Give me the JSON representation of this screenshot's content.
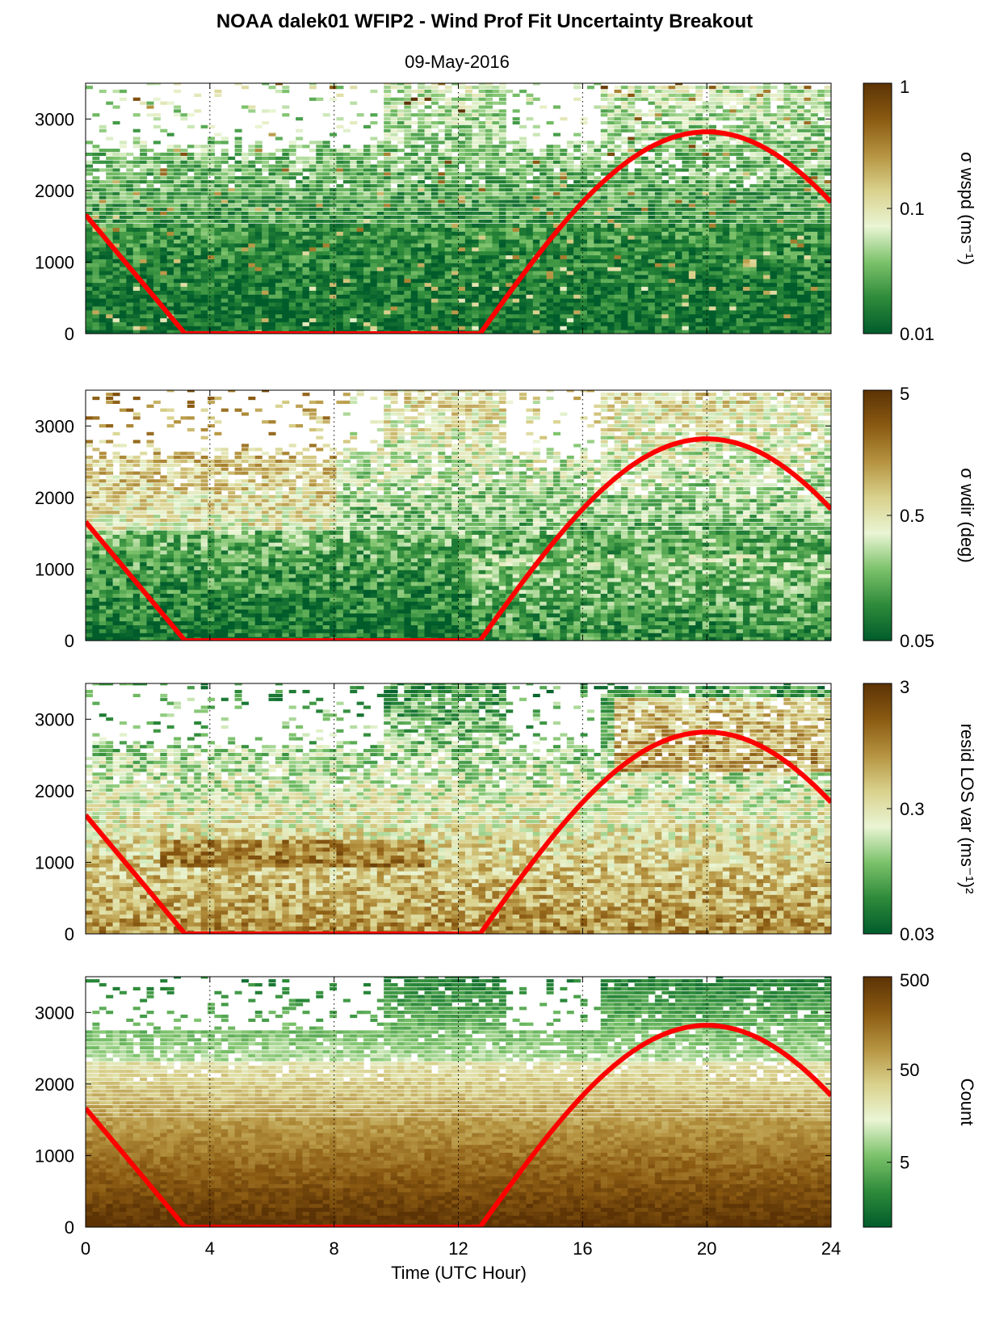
{
  "figure": {
    "title": "NOAA dalek01 WFIP2 - Wind Prof Fit Uncertainty Breakout",
    "subtitle": "09-May-2016",
    "xlabel": "Time (UTC Hour)"
  },
  "colors": {
    "sun_curve": "#ff0000",
    "colormap": [
      "#005c2b",
      "#2e8b3a",
      "#7cc26b",
      "#eaf5d4",
      "#d9d18c",
      "#b59340",
      "#8a5a12",
      "#5c3305"
    ],
    "gridline": "#000000"
  },
  "chart_data": [
    {
      "type": "heatmap",
      "name": "wspd",
      "cbar_label": "σ wspd (ms⁻¹)",
      "cbar_ticks": [
        "1",
        "0.1",
        "0.01"
      ],
      "cbar_scale": "log",
      "clim": [
        0.01,
        1
      ],
      "x_ticks": [
        "0",
        "4",
        "8",
        "12",
        "16",
        "20",
        "24"
      ],
      "y_ticks": [
        "0",
        "1000",
        "2000",
        "3000"
      ],
      "xlim": [
        0,
        24
      ],
      "ylim": [
        0,
        3500
      ],
      "grid": "vertical dotted",
      "sun_curve": {
        "x": [
          0,
          3.2,
          12.7,
          16,
          20,
          24
        ],
        "y": [
          1660,
          0,
          0,
          1700,
          2820,
          1800
        ]
      }
    },
    {
      "type": "heatmap",
      "name": "wdir",
      "cbar_label": "σ wdir (deg)",
      "cbar_ticks": [
        "5",
        "0.5",
        "0.05"
      ],
      "cbar_scale": "log",
      "clim": [
        0.05,
        5
      ],
      "x_ticks": [
        "0",
        "4",
        "8",
        "12",
        "16",
        "20",
        "24"
      ],
      "y_ticks": [
        "0",
        "1000",
        "2000",
        "3000"
      ],
      "xlim": [
        0,
        24
      ],
      "ylim": [
        0,
        3500
      ],
      "grid": "vertical dotted",
      "sun_curve": {
        "x": [
          0,
          3.2,
          12.7,
          16,
          20,
          24
        ],
        "y": [
          1660,
          0,
          0,
          1700,
          2820,
          1800
        ]
      }
    },
    {
      "type": "heatmap",
      "name": "resid",
      "cbar_label": "resid LOS var (ms⁻¹)²",
      "cbar_ticks": [
        "3",
        "0.3",
        "0.03"
      ],
      "cbar_scale": "log",
      "clim": [
        0.03,
        3
      ],
      "x_ticks": [
        "0",
        "4",
        "8",
        "12",
        "16",
        "20",
        "24"
      ],
      "y_ticks": [
        "0",
        "1000",
        "2000",
        "3000"
      ],
      "xlim": [
        0,
        24
      ],
      "ylim": [
        0,
        3500
      ],
      "grid": "vertical dotted",
      "sun_curve": {
        "x": [
          0,
          3.2,
          12.7,
          16,
          20,
          24
        ],
        "y": [
          1660,
          0,
          0,
          1700,
          2820,
          1800
        ]
      }
    },
    {
      "type": "heatmap",
      "name": "count",
      "cbar_label": "Count",
      "cbar_ticks": [
        "500",
        "50",
        "5"
      ],
      "cbar_scale": "log",
      "clim": [
        1,
        500
      ],
      "x_ticks": [
        "0",
        "4",
        "8",
        "12",
        "16",
        "20",
        "24"
      ],
      "y_ticks": [
        "0",
        "1000",
        "2000",
        "3000"
      ],
      "xlim": [
        0,
        24
      ],
      "ylim": [
        0,
        3500
      ],
      "grid": "vertical dotted",
      "sun_curve": {
        "x": [
          0,
          3.2,
          12.7,
          16,
          20,
          24
        ],
        "y": [
          1660,
          0,
          0,
          1700,
          2820,
          1800
        ]
      }
    }
  ]
}
